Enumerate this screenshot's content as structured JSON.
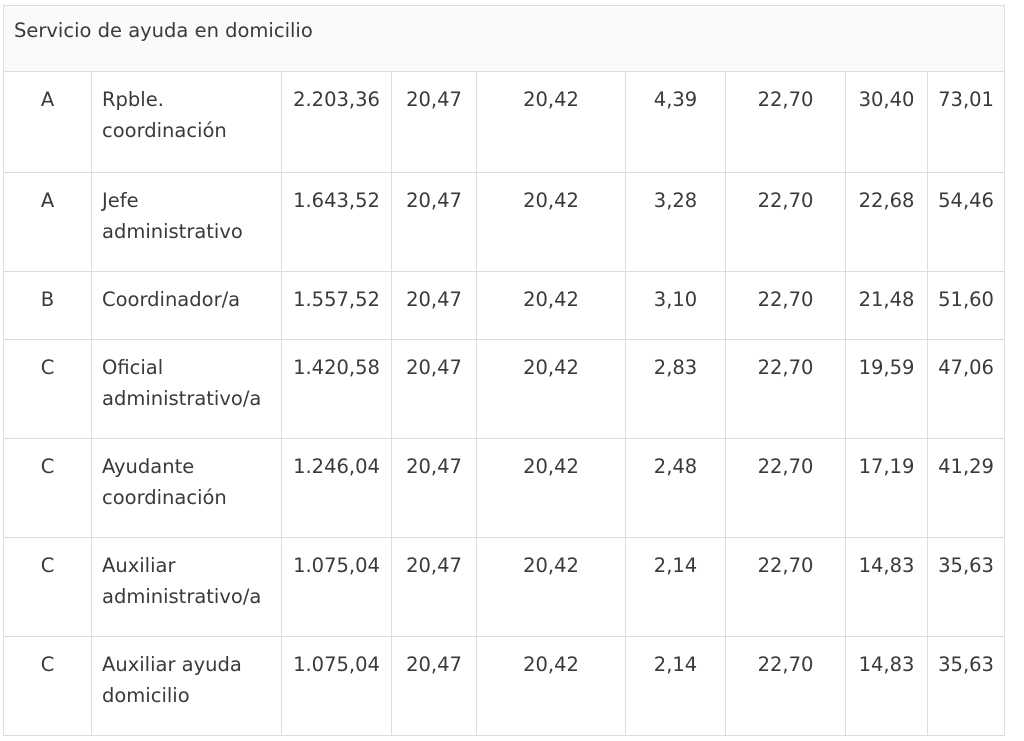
{
  "table": {
    "section_title": "Servicio de ayuda en domicilio",
    "rows": [
      {
        "cat": "A",
        "pos_lines": [
          "Rpble.",
          "coordinación"
        ],
        "vals": [
          "2.203,36",
          "20,47",
          "20,42",
          "4,39",
          "22,70",
          "30,40",
          "73,01"
        ]
      },
      {
        "cat": "A",
        "pos_lines": [
          "Jefe",
          "administrativo"
        ],
        "vals": [
          "1.643,52",
          "20,47",
          "20,42",
          "3,28",
          "22,70",
          "22,68",
          "54,46"
        ]
      },
      {
        "cat": "B",
        "pos_lines": [
          "Coordinador/a"
        ],
        "vals": [
          "1.557,52",
          "20,47",
          "20,42",
          "3,10",
          "22,70",
          "21,48",
          "51,60"
        ]
      },
      {
        "cat": "C",
        "pos_lines": [
          "Oficial",
          "administrativo/a"
        ],
        "vals": [
          "1.420,58",
          "20,47",
          "20,42",
          "2,83",
          "22,70",
          "19,59",
          "47,06"
        ]
      },
      {
        "cat": "C",
        "pos_lines": [
          "Ayudante",
          "coordinación"
        ],
        "vals": [
          "1.246,04",
          "20,47",
          "20,42",
          "2,48",
          "22,70",
          "17,19",
          "41,29"
        ]
      },
      {
        "cat": "C",
        "pos_lines": [
          "Auxiliar",
          "administrativo/a"
        ],
        "vals": [
          "1.075,04",
          "20,47",
          "20,42",
          "2,14",
          "22,70",
          "14,83",
          "35,63"
        ]
      },
      {
        "cat": "C",
        "pos_lines": [
          "Auxiliar ayuda",
          "domicilio"
        ],
        "vals": [
          "1.075,04",
          "20,47",
          "20,42",
          "2,14",
          "22,70",
          "14,83",
          "35,63"
        ]
      }
    ]
  }
}
